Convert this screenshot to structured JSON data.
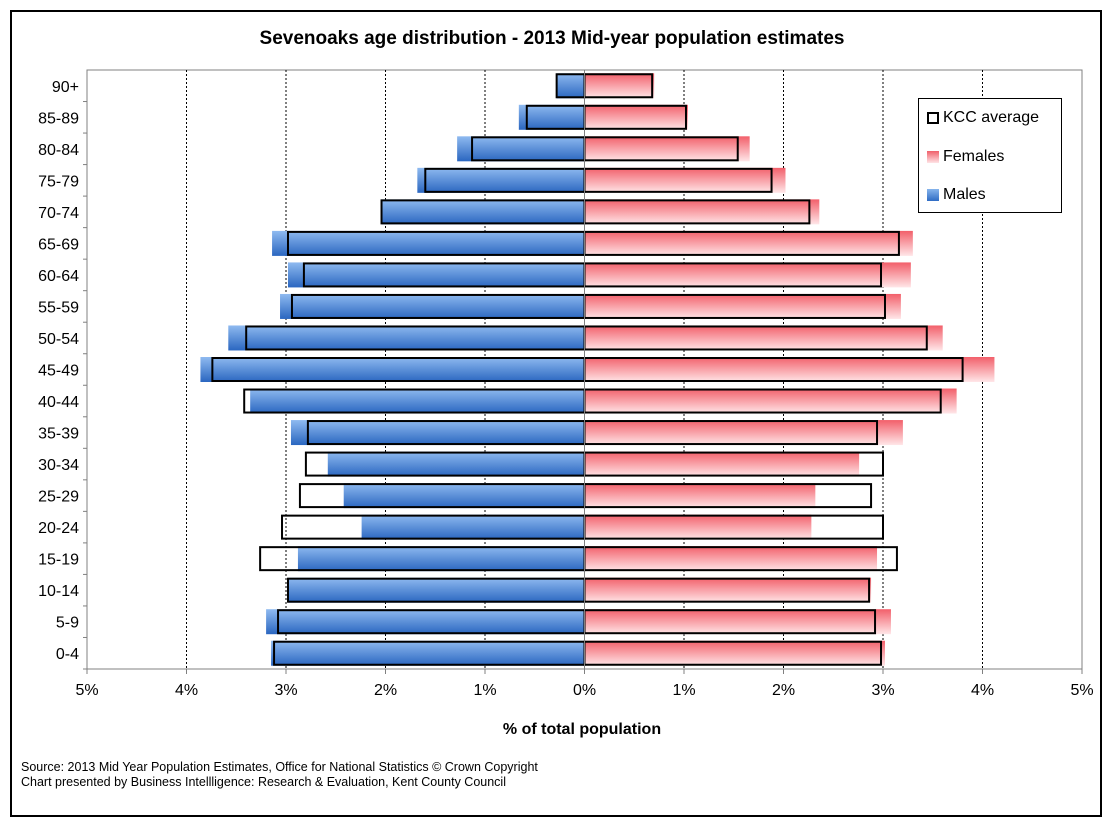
{
  "chart_data": {
    "type": "bar",
    "orientation": "horizontal",
    "subtype": "population-pyramid",
    "title": "Sevenoaks age distribution - 2013 Mid-year population estimates",
    "xlabel": "% of total population",
    "ylabel": "",
    "xlim": [
      -5,
      5
    ],
    "x_tick_labels": [
      "5%",
      "4%",
      "3%",
      "2%",
      "1%",
      "0%",
      "1%",
      "2%",
      "3%",
      "4%",
      "5%"
    ],
    "categories": [
      "0-4",
      "5-9",
      "10-14",
      "15-19",
      "20-24",
      "25-29",
      "30-34",
      "35-39",
      "40-44",
      "45-49",
      "50-54",
      "55-59",
      "60-64",
      "65-69",
      "70-74",
      "75-79",
      "80-84",
      "85-89",
      "90+"
    ],
    "series": [
      {
        "name": "Males",
        "values": [
          3.15,
          3.2,
          2.98,
          2.88,
          2.24,
          2.42,
          2.58,
          2.95,
          3.36,
          3.86,
          3.58,
          3.06,
          2.98,
          3.14,
          2.04,
          1.68,
          1.28,
          0.66,
          0.28
        ]
      },
      {
        "name": "Females",
        "values": [
          3.02,
          3.08,
          2.88,
          2.94,
          2.28,
          2.32,
          2.76,
          3.2,
          3.74,
          4.12,
          3.6,
          3.18,
          3.28,
          3.3,
          2.36,
          2.02,
          1.66,
          1.04,
          0.7
        ]
      },
      {
        "name": "KCC average",
        "male_values": [
          3.12,
          3.08,
          2.98,
          3.26,
          3.04,
          2.86,
          2.8,
          2.78,
          3.42,
          3.74,
          3.4,
          2.94,
          2.82,
          2.98,
          2.04,
          1.6,
          1.13,
          0.58,
          0.28
        ],
        "female_values": [
          2.98,
          2.92,
          2.86,
          3.14,
          3.0,
          2.88,
          3.0,
          2.94,
          3.58,
          3.8,
          3.44,
          3.02,
          2.98,
          3.16,
          2.26,
          1.88,
          1.54,
          1.02,
          0.68
        ]
      }
    ],
    "grid": "vertical dashed",
    "legend_position": "top-right",
    "colors": {
      "males": "#3a78d0",
      "females": "#f4717a",
      "kcc_outline": "#000000"
    }
  },
  "legend": {
    "kcc": "KCC average",
    "females": "Females",
    "males": "Males"
  },
  "source": {
    "line1": "Source:  2013 Mid Year Population Estimates,  Office for National Statistics © Crown Copyright",
    "line2": "Chart presented by Business Intellligence: Research & Evaluation,  Kent County Council"
  }
}
